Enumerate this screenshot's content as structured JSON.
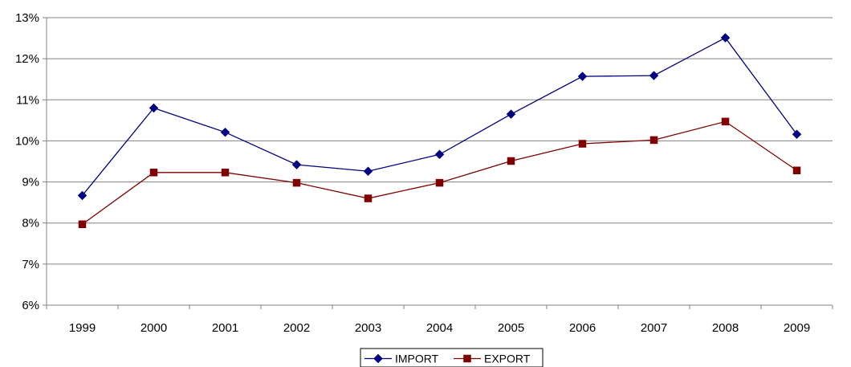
{
  "chart_data": {
    "type": "line",
    "title": "",
    "xlabel": "",
    "ylabel": "",
    "categories": [
      "1999",
      "2000",
      "2001",
      "2002",
      "2003",
      "2004",
      "2005",
      "2006",
      "2007",
      "2008",
      "2009"
    ],
    "ylim": [
      6,
      13
    ],
    "yticks": [
      6,
      7,
      8,
      9,
      10,
      11,
      12,
      13
    ],
    "ytick_labels": [
      "6%",
      "7%",
      "8%",
      "9%",
      "10%",
      "11%",
      "12%",
      "13%"
    ],
    "grid": true,
    "legend_position": "bottom",
    "series": [
      {
        "name": "IMPORT",
        "color": "#000080",
        "marker": "diamond",
        "values": [
          8.67,
          10.8,
          10.21,
          9.42,
          9.26,
          9.67,
          10.65,
          11.57,
          11.59,
          12.51,
          10.16
        ]
      },
      {
        "name": "EXPORT",
        "color": "#800000",
        "marker": "square",
        "values": [
          7.97,
          9.23,
          9.23,
          8.98,
          8.6,
          8.98,
          9.51,
          9.93,
          10.02,
          10.47,
          9.28
        ]
      }
    ]
  }
}
